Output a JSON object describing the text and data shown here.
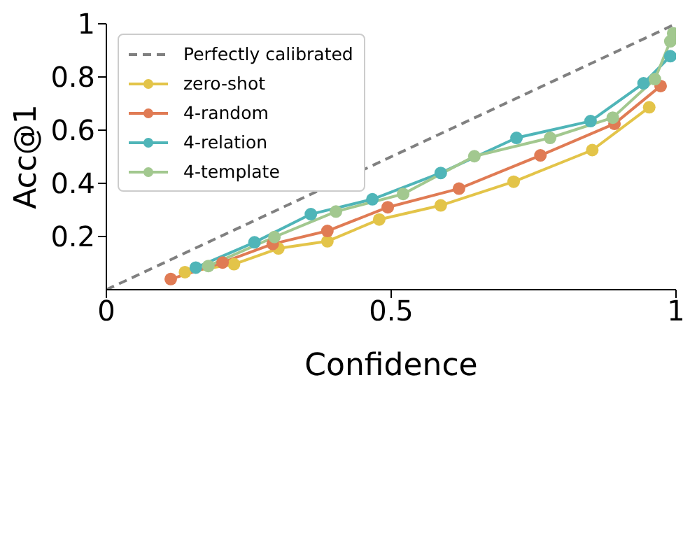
{
  "chart_data": {
    "type": "line",
    "xlabel": "Confidence",
    "ylabel": "Acc@1",
    "xlim": [
      0,
      1
    ],
    "ylim": [
      0,
      1
    ],
    "xticks": [
      0,
      0.5,
      1
    ],
    "yticks": [
      0.2,
      0.4,
      0.6,
      0.8,
      1
    ],
    "grid": false,
    "legend": "top left",
    "marker": "circle",
    "series": [
      {
        "name": "Perfectly calibrated",
        "color": "#808080",
        "x": [
          0,
          1
        ],
        "values": [
          0,
          1
        ],
        "line_style": "dashed",
        "marker": "none"
      },
      {
        "name": "zero-shot",
        "color": "#e3c449",
        "x": [
          0.138,
          0.224,
          0.302,
          0.388,
          0.479,
          0.587,
          0.715,
          0.853,
          0.953
        ],
        "values": [
          0.066,
          0.096,
          0.155,
          0.182,
          0.264,
          0.317,
          0.406,
          0.525,
          0.686
        ]
      },
      {
        "name": "4-random",
        "color": "#e07b54",
        "x": [
          0.113,
          0.204,
          0.292,
          0.388,
          0.494,
          0.619,
          0.762,
          0.892,
          0.973
        ],
        "values": [
          0.04,
          0.102,
          0.172,
          0.221,
          0.31,
          0.38,
          0.505,
          0.624,
          0.766
        ]
      },
      {
        "name": "4-relation",
        "color": "#4fb5b8",
        "x": [
          0.157,
          0.26,
          0.359,
          0.467,
          0.587,
          0.72,
          0.85,
          0.943,
          0.99
        ],
        "values": [
          0.083,
          0.178,
          0.284,
          0.34,
          0.439,
          0.571,
          0.634,
          0.776,
          0.878
        ]
      },
      {
        "name": "4-template",
        "color": "#a2c88f",
        "x": [
          0.179,
          0.295,
          0.403,
          0.521,
          0.646,
          0.779,
          0.889,
          0.963,
          0.99,
          0.995
        ],
        "values": [
          0.089,
          0.198,
          0.294,
          0.36,
          0.502,
          0.571,
          0.647,
          0.792,
          0.934,
          0.964
        ]
      }
    ]
  }
}
